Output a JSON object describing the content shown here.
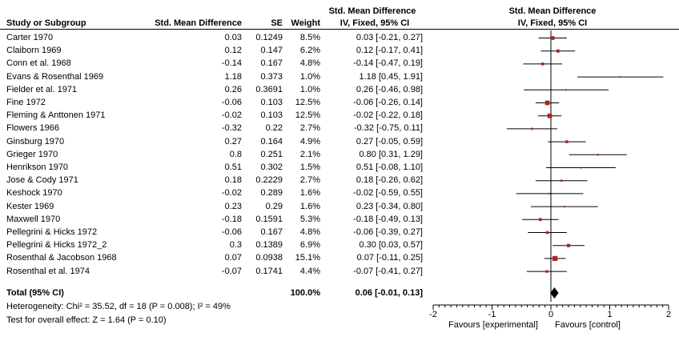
{
  "header": {
    "study": "Study or Subgroup",
    "smd": "Std. Mean Difference",
    "se": "SE",
    "weight": "Weight",
    "ci_title": "Std. Mean Difference",
    "ci_sub": "IV, Fixed, 95% CI",
    "plot_title": "Std. Mean Difference",
    "plot_sub": "IV, Fixed, 95% CI"
  },
  "total": {
    "label": "Total (95% CI)",
    "weight": "100.0%",
    "ci": "0.06 [-0.01, 0.13]",
    "heterogeneity": "Heterogeneity: Chi² = 35.52, df = 18 (P = 0.008); I² = 49%",
    "overall": "Test for overall effect: Z = 1.64 (P = 0.10)"
  },
  "footer": {
    "favours_left": "Favours [experimental]",
    "favours_right": "Favours [control]"
  },
  "chart_data": {
    "type": "forest",
    "x_range": [
      -2,
      2
    ],
    "x_ticks": [
      -2,
      -1,
      0,
      1,
      2
    ],
    "x_tick_labels": [
      "-2",
      "-1",
      "0",
      "1",
      "2"
    ],
    "colors": {
      "marker": "#b22222",
      "line": "#000000",
      "diamond": "#000000"
    },
    "studies": [
      {
        "name": "Carter 1970",
        "smd": "0.03",
        "se": "0.1249",
        "weight": "8.5%",
        "ci": "0.03 [-0.21, 0.27]",
        "est": 0.03,
        "lo": -0.21,
        "hi": 0.27,
        "w": 8.5
      },
      {
        "name": "Claiborn 1969",
        "smd": "0.12",
        "se": "0.147",
        "weight": "6.2%",
        "ci": "0.12 [-0.17, 0.41]",
        "est": 0.12,
        "lo": -0.17,
        "hi": 0.41,
        "w": 6.2
      },
      {
        "name": "Conn et al. 1968",
        "smd": "-0.14",
        "se": "0.167",
        "weight": "4.8%",
        "ci": "-0.14 [-0.47, 0.19]",
        "est": -0.14,
        "lo": -0.47,
        "hi": 0.19,
        "w": 4.8
      },
      {
        "name": "Evans & Rosenthal 1969",
        "smd": "1.18",
        "se": "0.373",
        "weight": "1.0%",
        "ci": "1.18 [0.45, 1.91]",
        "est": 1.18,
        "lo": 0.45,
        "hi": 1.91,
        "w": 1.0
      },
      {
        "name": "Fielder et al. 1971",
        "smd": "0.26",
        "se": "0.3691",
        "weight": "1.0%",
        "ci": "0.26 [-0.46, 0.98]",
        "est": 0.26,
        "lo": -0.46,
        "hi": 0.98,
        "w": 1.0
      },
      {
        "name": "Fine 1972",
        "smd": "-0.06",
        "se": "0.103",
        "weight": "12.5%",
        "ci": "-0.06 [-0.26, 0.14]",
        "est": -0.06,
        "lo": -0.26,
        "hi": 0.14,
        "w": 12.5
      },
      {
        "name": "Fleming & Anttonen 1971",
        "smd": "-0.02",
        "se": "0.103",
        "weight": "12.5%",
        "ci": "-0.02 [-0.22, 0.18]",
        "est": -0.02,
        "lo": -0.22,
        "hi": 0.18,
        "w": 12.5
      },
      {
        "name": "Flowers 1966",
        "smd": "-0.32",
        "se": "0.22",
        "weight": "2.7%",
        "ci": "-0.32 [-0.75, 0.11]",
        "est": -0.32,
        "lo": -0.75,
        "hi": 0.11,
        "w": 2.7
      },
      {
        "name": "Ginsburg 1970",
        "smd": "0.27",
        "se": "0.164",
        "weight": "4.9%",
        "ci": "0.27 [-0.05, 0.59]",
        "est": 0.27,
        "lo": -0.05,
        "hi": 0.59,
        "w": 4.9
      },
      {
        "name": "Grieger 1970",
        "smd": "0.8",
        "se": "0.251",
        "weight": "2.1%",
        "ci": "0.80 [0.31, 1.29]",
        "est": 0.8,
        "lo": 0.31,
        "hi": 1.29,
        "w": 2.1
      },
      {
        "name": "Henrikson 1970",
        "smd": "0.51",
        "se": "0.302",
        "weight": "1.5%",
        "ci": "0.51 [-0.08, 1.10]",
        "est": 0.51,
        "lo": -0.08,
        "hi": 1.1,
        "w": 1.5
      },
      {
        "name": "Jose & Cody 1971",
        "smd": "0.18",
        "se": "0.2229",
        "weight": "2.7%",
        "ci": "0.18 [-0.26, 0.62]",
        "est": 0.18,
        "lo": -0.26,
        "hi": 0.62,
        "w": 2.7
      },
      {
        "name": "Keshock 1970",
        "smd": "-0.02",
        "se": "0.289",
        "weight": "1.6%",
        "ci": "-0.02 [-0.59, 0.55]",
        "est": -0.02,
        "lo": -0.59,
        "hi": 0.55,
        "w": 1.6
      },
      {
        "name": "Kester 1969",
        "smd": "0.23",
        "se": "0.29",
        "weight": "1.6%",
        "ci": "0.23 [-0.34, 0.80]",
        "est": 0.23,
        "lo": -0.34,
        "hi": 0.8,
        "w": 1.6
      },
      {
        "name": "Maxwell 1970",
        "smd": "-0.18",
        "se": "0.1591",
        "weight": "5.3%",
        "ci": "-0.18 [-0.49, 0.13]",
        "est": -0.18,
        "lo": -0.49,
        "hi": 0.13,
        "w": 5.3
      },
      {
        "name": "Pellegrini & Hicks 1972",
        "smd": "-0.06",
        "se": "0.167",
        "weight": "4.8%",
        "ci": "-0.06 [-0.39, 0.27]",
        "est": -0.06,
        "lo": -0.39,
        "hi": 0.27,
        "w": 4.8
      },
      {
        "name": "Pellegrini & Hicks 1972_2",
        "smd": "0.3",
        "se": "0.1389",
        "weight": "6.9%",
        "ci": "0.30 [0.03, 0.57]",
        "est": 0.3,
        "lo": 0.03,
        "hi": 0.57,
        "w": 6.9
      },
      {
        "name": "Rosenthal & Jacobson 1968",
        "smd": "0.07",
        "se": "0.0938",
        "weight": "15.1%",
        "ci": "0.07 [-0.11, 0.25]",
        "est": 0.07,
        "lo": -0.11,
        "hi": 0.25,
        "w": 15.1
      },
      {
        "name": "Rosenthal et al. 1974",
        "smd": "-0.07",
        "se": "0.1741",
        "weight": "4.4%",
        "ci": "-0.07 [-0.41, 0.27]",
        "est": -0.07,
        "lo": -0.41,
        "hi": 0.27,
        "w": 4.4
      }
    ],
    "pooled": {
      "est": 0.06,
      "lo": -0.01,
      "hi": 0.13
    }
  }
}
